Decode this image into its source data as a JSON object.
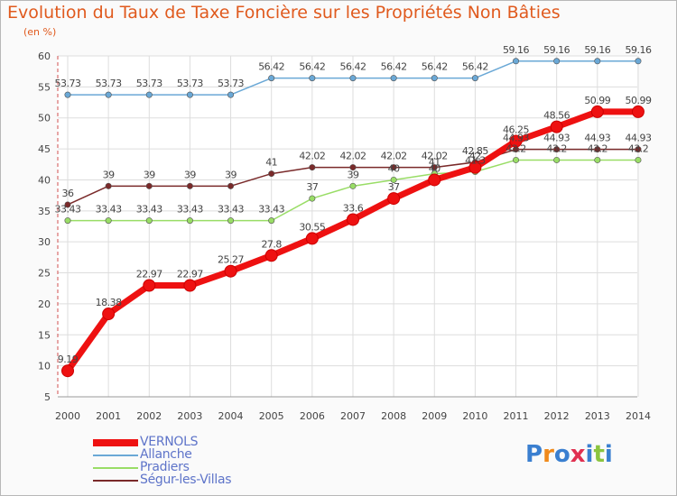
{
  "chart_data": {
    "type": "line",
    "title": "Evolution du Taux de Taxe Foncière sur les Propriétés Non Bâties",
    "unit_label": "(en %)",
    "x": [
      2000,
      2001,
      2002,
      2003,
      2004,
      2005,
      2006,
      2007,
      2008,
      2009,
      2010,
      2011,
      2012,
      2013,
      2014
    ],
    "ylim": [
      5,
      60
    ],
    "yticks": [
      5,
      10,
      15,
      20,
      25,
      30,
      35,
      40,
      45,
      50,
      55,
      60
    ],
    "grid": true,
    "series": [
      {
        "name": "VERNOLS",
        "color": "#ee1111",
        "labels": [
          "9.19",
          "18.38",
          "22.97",
          "22.97",
          "25.27",
          "27.8",
          "30.55",
          "33.6",
          "37",
          "40",
          "42",
          "46.25",
          "48.56",
          "50.99",
          "50.99"
        ],
        "values": [
          9.19,
          18.38,
          22.97,
          22.97,
          25.27,
          27.8,
          30.55,
          33.6,
          37,
          40,
          42,
          46.25,
          48.56,
          50.99,
          50.99
        ]
      },
      {
        "name": "Allanche",
        "color": "#6aa8d6",
        "labels": [
          "53.73",
          "53.73",
          "53.73",
          "53.73",
          "53.73",
          "56.42",
          "56.42",
          "56.42",
          "56.42",
          "56.42",
          "56.42",
          "59.16",
          "59.16",
          "59.16",
          "59.16"
        ],
        "values": [
          53.73,
          53.73,
          53.73,
          53.73,
          53.73,
          56.42,
          56.42,
          56.42,
          56.42,
          56.42,
          56.42,
          59.16,
          59.16,
          59.16,
          59.16
        ]
      },
      {
        "name": "Pradiers",
        "color": "#99dd66",
        "labels": [
          "33.43",
          "33.43",
          "33.43",
          "33.43",
          "33.43",
          "33.43",
          "37",
          "39",
          "40",
          "41",
          "41.3",
          "43.2",
          "43.2",
          "43.2",
          "43.2"
        ],
        "values": [
          33.43,
          33.43,
          33.43,
          33.43,
          33.43,
          33.43,
          37,
          39,
          40,
          41,
          41.3,
          43.2,
          43.2,
          43.2,
          43.2
        ]
      },
      {
        "name": "Ségur-les-Villas",
        "color": "#7a2a2a",
        "labels": [
          "36",
          "39",
          "39",
          "39",
          "39",
          "41",
          "42.02",
          "42.02",
          "42.02",
          "42.02",
          "42.85",
          "44.93",
          "44.93",
          "44.93",
          "44.93"
        ],
        "values": [
          36,
          39,
          39,
          39,
          39,
          41,
          42.02,
          42.02,
          42.02,
          42.02,
          42.85,
          44.93,
          44.93,
          44.93,
          44.93
        ]
      }
    ]
  },
  "legend": [
    {
      "label": "VERNOLS",
      "color": "#ee1111"
    },
    {
      "label": "Allanche",
      "color": "#6aa8d6"
    },
    {
      "label": "Pradiers",
      "color": "#99dd66"
    },
    {
      "label": "Ségur-les-Villas",
      "color": "#7a2a2a"
    }
  ],
  "logo": {
    "text": "Proxiti"
  }
}
